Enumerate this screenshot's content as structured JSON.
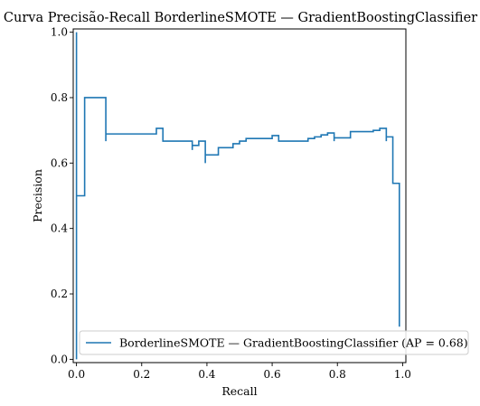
{
  "chart_data": {
    "type": "line",
    "title": "Curva Precisão-Recall BorderlineSMOTE — GradientBoostingClassifier",
    "xlabel": "Recall",
    "ylabel": "Precision",
    "xlim": [
      -0.01,
      1.01
    ],
    "ylim": [
      -0.01,
      1.01
    ],
    "xticks": [
      0.0,
      0.2,
      0.4,
      0.6,
      0.8,
      1.0
    ],
    "yticks": [
      0.0,
      0.2,
      0.4,
      0.6,
      0.8,
      1.0
    ],
    "xtick_labels": [
      "0.0",
      "0.2",
      "0.4",
      "0.6",
      "0.8",
      "1.0"
    ],
    "ytick_labels": [
      "0.0",
      "0.2",
      "0.4",
      "0.6",
      "0.8",
      "1.0"
    ],
    "grid": false,
    "legend_position": "lower-right",
    "series": [
      {
        "name": "BorderlineSMOTE — GradientBoostingClassifier (AP = 0.68)",
        "color": "#1f77b4",
        "drawstyle": "steps-post",
        "points": [
          [
            0.0,
            1.0
          ],
          [
            0.0,
            0.0
          ],
          [
            0.0,
            0.5
          ],
          [
            0.025,
            0.5
          ],
          [
            0.025,
            0.8
          ],
          [
            0.09,
            0.8
          ],
          [
            0.09,
            0.667
          ],
          [
            0.09,
            0.689
          ],
          [
            0.245,
            0.689
          ],
          [
            0.245,
            0.706
          ],
          [
            0.265,
            0.706
          ],
          [
            0.265,
            0.667
          ],
          [
            0.355,
            0.667
          ],
          [
            0.355,
            0.64
          ],
          [
            0.355,
            0.654
          ],
          [
            0.375,
            0.654
          ],
          [
            0.375,
            0.667
          ],
          [
            0.395,
            0.667
          ],
          [
            0.395,
            0.6
          ],
          [
            0.395,
            0.625
          ],
          [
            0.435,
            0.625
          ],
          [
            0.435,
            0.647
          ],
          [
            0.48,
            0.647
          ],
          [
            0.48,
            0.659
          ],
          [
            0.5,
            0.659
          ],
          [
            0.5,
            0.667
          ],
          [
            0.52,
            0.667
          ],
          [
            0.52,
            0.675
          ],
          [
            0.6,
            0.675
          ],
          [
            0.6,
            0.684
          ],
          [
            0.62,
            0.684
          ],
          [
            0.62,
            0.667
          ],
          [
            0.71,
            0.667
          ],
          [
            0.71,
            0.675
          ],
          [
            0.73,
            0.675
          ],
          [
            0.73,
            0.68
          ],
          [
            0.75,
            0.68
          ],
          [
            0.75,
            0.686
          ],
          [
            0.77,
            0.686
          ],
          [
            0.77,
            0.692
          ],
          [
            0.79,
            0.692
          ],
          [
            0.79,
            0.667
          ],
          [
            0.79,
            0.677
          ],
          [
            0.84,
            0.677
          ],
          [
            0.84,
            0.696
          ],
          [
            0.91,
            0.696
          ],
          [
            0.91,
            0.7
          ],
          [
            0.93,
            0.7
          ],
          [
            0.93,
            0.706
          ],
          [
            0.95,
            0.706
          ],
          [
            0.95,
            0.667
          ],
          [
            0.95,
            0.68
          ],
          [
            0.97,
            0.68
          ],
          [
            0.97,
            0.538
          ],
          [
            0.99,
            0.538
          ],
          [
            0.99,
            0.1
          ]
        ]
      }
    ]
  }
}
